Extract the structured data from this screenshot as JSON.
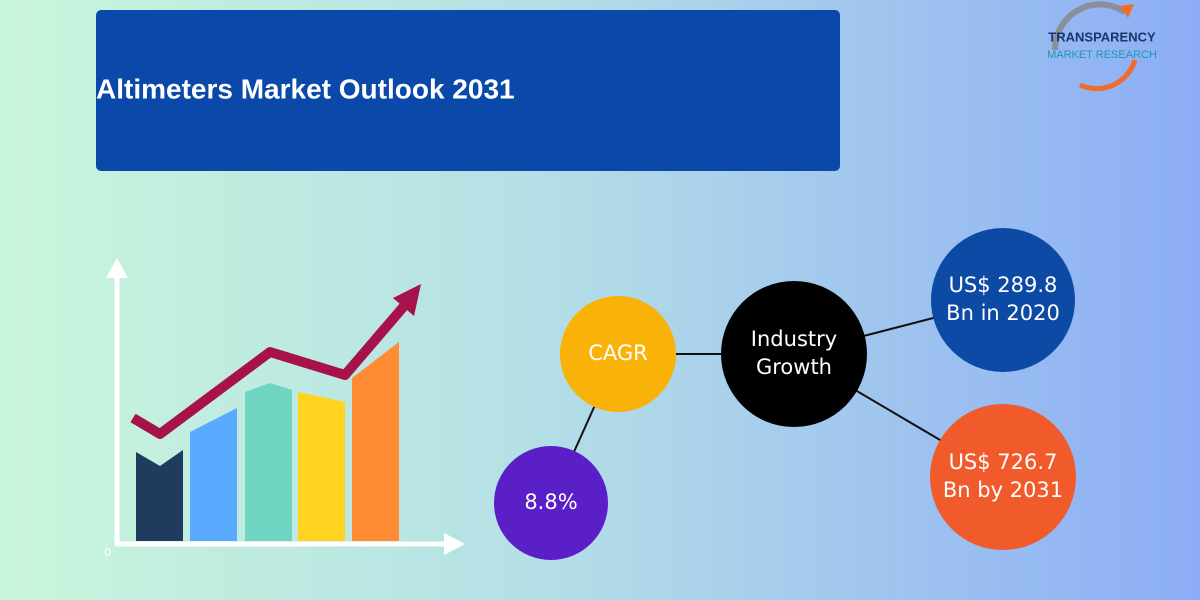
{
  "header": {
    "title": "Altimeters Market Outlook 2031"
  },
  "logo": {
    "line1": "TRANSPARENCY",
    "line2": "MARKET RESEARCH"
  },
  "chart_icon": {
    "origin_label": "0"
  },
  "nodes": [
    {
      "lines": [
        "CAGR"
      ]
    },
    {
      "lines": [
        "Industry",
        "Growth"
      ]
    },
    {
      "lines": [
        "US$ 289.8",
        "Bn in 2020"
      ]
    },
    {
      "lines": [
        "US$ 726.7",
        "Bn by 2031"
      ]
    },
    {
      "lines": [
        "8.8%"
      ]
    }
  ]
}
